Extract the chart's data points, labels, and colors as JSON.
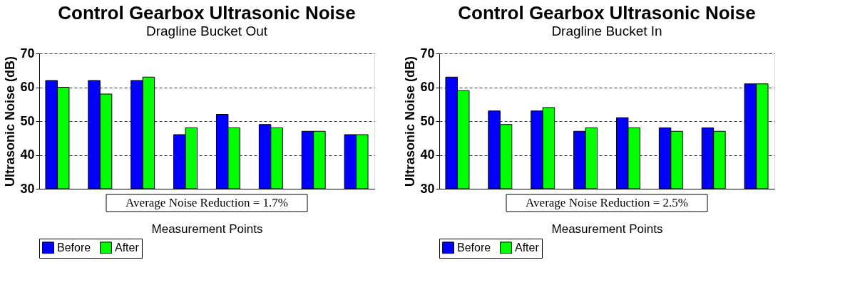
{
  "chart_data": [
    {
      "type": "bar",
      "title": "Control Gearbox Ultrasonic Noise",
      "subtitle": "Dragline Bucket Out",
      "xlabel": "Measurement Points",
      "ylabel": "Ultrasonic Noise (dB)",
      "categories": [
        null,
        null,
        null,
        null,
        null,
        null,
        null,
        null
      ],
      "series": [
        {
          "name": "Before",
          "color": "#0000ff",
          "values": [
            62,
            62,
            62,
            46,
            52,
            49,
            47,
            46
          ]
        },
        {
          "name": "After",
          "color": "#00ff00",
          "values": [
            60,
            58,
            63,
            48,
            48,
            48,
            47,
            46
          ]
        }
      ],
      "ylim": [
        30,
        70
      ],
      "yticks": [
        30,
        40,
        50,
        60,
        70
      ],
      "grid": "y",
      "legend": "bottom",
      "annotations": [
        "Average Noise Reduction = 1.7%"
      ]
    },
    {
      "type": "bar",
      "title": "Control Gearbox Ultrasonic Noise",
      "subtitle": "Dragline Bucket In",
      "xlabel": "Measurement Points",
      "ylabel": "Ultrasonic Noise (dB)",
      "categories": [
        null,
        null,
        null,
        null,
        null,
        null,
        null,
        null
      ],
      "series": [
        {
          "name": "Before",
          "color": "#0000ff",
          "values": [
            63,
            53,
            53,
            47,
            51,
            48,
            48,
            61
          ]
        },
        {
          "name": "After",
          "color": "#00ff00",
          "values": [
            59,
            49,
            54,
            48,
            48,
            47,
            47,
            61
          ]
        }
      ],
      "ylim": [
        30,
        70
      ],
      "yticks": [
        30,
        40,
        50,
        60,
        70
      ],
      "grid": "y",
      "legend": "bottom",
      "annotations": [
        "Average Noise Reduction = 2.5%"
      ]
    }
  ]
}
